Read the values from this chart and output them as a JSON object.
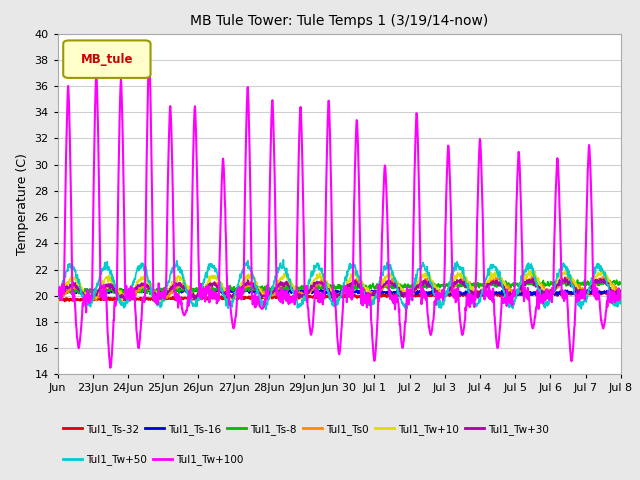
{
  "title": "MB Tule Tower: Tule Temps 1 (3/19/14-now)",
  "ylabel": "Temperature (C)",
  "xlabel": "",
  "ylim": [
    14,
    40
  ],
  "yticks": [
    14,
    16,
    18,
    20,
    22,
    24,
    26,
    28,
    30,
    32,
    34,
    36,
    38,
    40
  ],
  "background_color": "#e8e8e8",
  "plot_bg_color": "#ffffff",
  "grid_color": "#d0d0d0",
  "legend_label": "MB_tule",
  "series": [
    {
      "name": "Tul1_Ts-32",
      "color": "#dd0000",
      "lw": 1.5
    },
    {
      "name": "Tul1_Ts-16",
      "color": "#0000dd",
      "lw": 1.2
    },
    {
      "name": "Tul1_Ts-8",
      "color": "#00bb00",
      "lw": 1.2
    },
    {
      "name": "Tul1_Ts0",
      "color": "#ff8800",
      "lw": 1.2
    },
    {
      "name": "Tul1_Tw+10",
      "color": "#dddd00",
      "lw": 1.2
    },
    {
      "name": "Tul1_Tw+30",
      "color": "#aa00aa",
      "lw": 1.2
    },
    {
      "name": "Tul1_Tw+50",
      "color": "#00cccc",
      "lw": 1.2
    },
    {
      "name": "Tul1_Tw+100",
      "color": "#ff00ff",
      "lw": 1.5
    }
  ],
  "xtick_labels": [
    "Jun",
    "23Jun",
    "24Jun",
    "25Jun",
    "26Jun",
    "27Jun",
    "28Jun",
    "29Jun",
    "Jun 30",
    "Jul 1",
    "Jul 2",
    "Jul 3",
    "Jul 4",
    "Jul 5",
    "Jul 6",
    "Jul 7",
    "Jul 8"
  ],
  "n_days": 16
}
